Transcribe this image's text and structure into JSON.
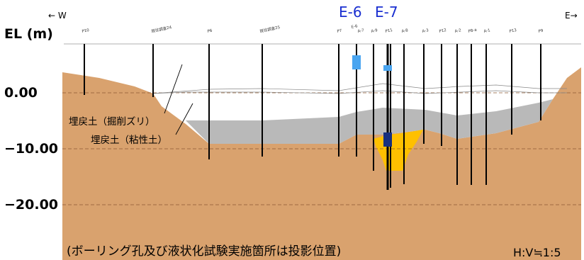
{
  "axis": {
    "title": "EL (m)",
    "ticks": [
      "0.00",
      "−10.00",
      "−20.00"
    ]
  },
  "direction": {
    "west": "← W",
    "east": "E→"
  },
  "test_sites": [
    "E-6",
    "E-7"
  ],
  "fill_labels": [
    "埋戻土（掘削ズリ）",
    "埋戻土（粘性土）"
  ],
  "boreholes": [
    "P10",
    "既往調査24",
    "P6",
    "既往調査25",
    "P7",
    "E-6",
    "A-7",
    "A-9",
    "P11",
    "A-8",
    "A-3",
    "P12",
    "A-2",
    "P8-a",
    "A-1",
    "P13",
    "P9"
  ],
  "note": "(ボーリング孔及び液状化試験実施箇所は投影位置)",
  "scale": "H:V≒1:5",
  "colors": {
    "ground": "#d9a26e",
    "fill_gravel": "#ffffff",
    "fill_clay": "#b9b9b9",
    "liquefiable": "#ffc000",
    "test_e6": "#4aa5f0",
    "test_e7_upper": "#4aa5f0",
    "test_e7_lower": "#17307e",
    "key_text": "#1a2fd0"
  }
}
